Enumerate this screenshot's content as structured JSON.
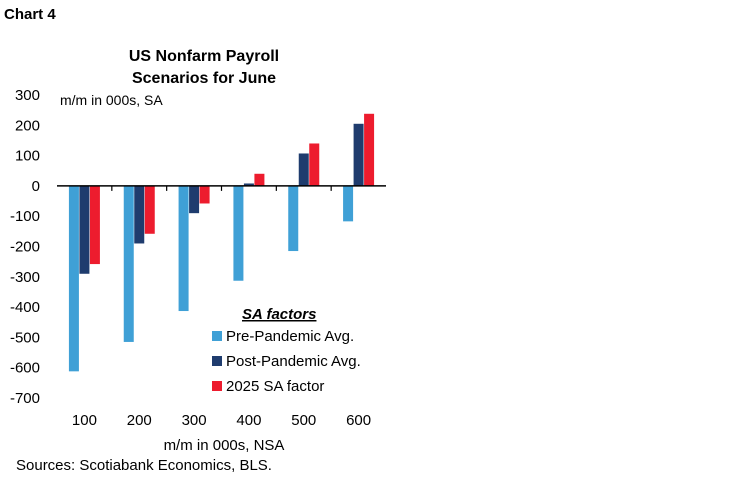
{
  "chart_label": "Chart 4",
  "source": "Sources: Scotiabank Economics, BLS.",
  "chart_data": {
    "type": "bar",
    "title_lines": [
      "US Nonfarm Payroll",
      "Scenarios for June"
    ],
    "ylabel": "m/m in 000s, SA",
    "xlabel": "m/m in 000s, NSA",
    "categories": [
      "100",
      "200",
      "300",
      "400",
      "500",
      "600"
    ],
    "ylim": [
      -700,
      300
    ],
    "yticks": [
      300,
      200,
      100,
      0,
      -100,
      -200,
      -300,
      -400,
      -500,
      -600,
      -700
    ],
    "grid": false,
    "legend_title": "SA factors",
    "legend_position": "bottom-right",
    "series": [
      {
        "name": "Pre-Pandemic Avg.",
        "color": "#3FA0D6",
        "values": [
          -612,
          -515,
          -413,
          -313,
          -215,
          -117
        ]
      },
      {
        "name": "Post-Pandemic Avg.",
        "color": "#1F3C6E",
        "values": [
          -290,
          -190,
          -90,
          8,
          107,
          205
        ]
      },
      {
        "name": "2025 SA factor",
        "color": "#ED1C2E",
        "values": [
          -258,
          -158,
          -58,
          40,
          140,
          238
        ]
      }
    ]
  }
}
